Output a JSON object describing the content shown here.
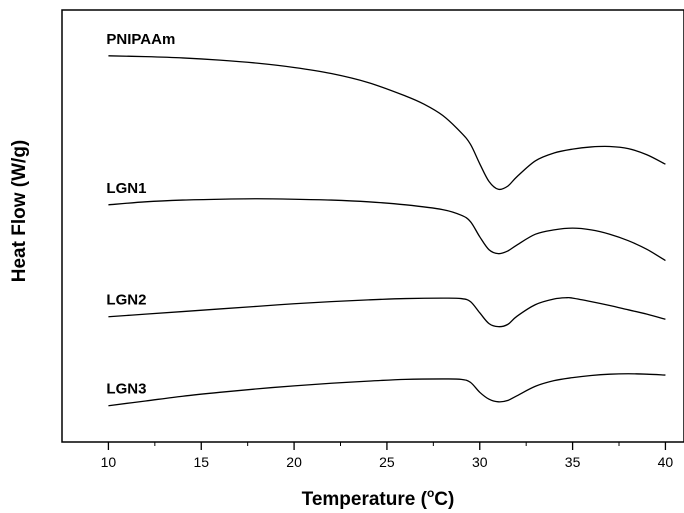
{
  "chart_data": {
    "type": "line",
    "xlabel": "Temperature",
    "xlabel_unit_prefix": "(",
    "xlabel_unit_sup": "o",
    "xlabel_unit": "C)",
    "ylabel": "Heat Flow (W/g)",
    "xlim": [
      7.5,
      41
    ],
    "ylim": [
      0,
      1
    ],
    "x_ticks": [
      10,
      15,
      20,
      25,
      30,
      35,
      40
    ],
    "y_tick_labels": false,
    "legend": "none (labels placed above each curve)",
    "grid": false,
    "series": [
      {
        "name": "PNIPAAm",
        "points": [
          [
            10,
            0.894
          ],
          [
            12,
            0.892
          ],
          [
            14,
            0.889
          ],
          [
            16,
            0.884
          ],
          [
            18,
            0.877
          ],
          [
            20,
            0.867
          ],
          [
            22,
            0.853
          ],
          [
            24,
            0.832
          ],
          [
            26,
            0.801
          ],
          [
            27,
            0.782
          ],
          [
            28,
            0.756
          ],
          [
            29,
            0.716
          ],
          [
            29.5,
            0.689
          ],
          [
            30,
            0.644
          ],
          [
            30.5,
            0.603
          ],
          [
            31,
            0.585
          ],
          [
            31.5,
            0.592
          ],
          [
            32,
            0.614
          ],
          [
            33,
            0.651
          ],
          [
            34,
            0.669
          ],
          [
            35,
            0.678
          ],
          [
            36,
            0.683
          ],
          [
            37,
            0.684
          ],
          [
            38,
            0.679
          ],
          [
            39,
            0.665
          ],
          [
            40,
            0.643
          ]
        ]
      },
      {
        "name": "LGN1",
        "points": [
          [
            10,
            0.549
          ],
          [
            12,
            0.556
          ],
          [
            14,
            0.56
          ],
          [
            16,
            0.562
          ],
          [
            18,
            0.563
          ],
          [
            20,
            0.562
          ],
          [
            22,
            0.56
          ],
          [
            24,
            0.556
          ],
          [
            26,
            0.549
          ],
          [
            28,
            0.538
          ],
          [
            29,
            0.525
          ],
          [
            29.5,
            0.51
          ],
          [
            30,
            0.475
          ],
          [
            30.5,
            0.445
          ],
          [
            31,
            0.436
          ],
          [
            31.5,
            0.442
          ],
          [
            32,
            0.456
          ],
          [
            33,
            0.481
          ],
          [
            34,
            0.491
          ],
          [
            35,
            0.495
          ],
          [
            36,
            0.491
          ],
          [
            37,
            0.481
          ],
          [
            38,
            0.466
          ],
          [
            39,
            0.446
          ],
          [
            40,
            0.42
          ]
        ]
      },
      {
        "name": "LGN2",
        "points": [
          [
            10,
            0.29
          ],
          [
            12,
            0.296
          ],
          [
            14,
            0.302
          ],
          [
            16,
            0.308
          ],
          [
            18,
            0.314
          ],
          [
            20,
            0.32
          ],
          [
            22,
            0.325
          ],
          [
            24,
            0.329
          ],
          [
            26,
            0.332
          ],
          [
            28,
            0.333
          ],
          [
            29,
            0.332
          ],
          [
            29.5,
            0.325
          ],
          [
            30,
            0.299
          ],
          [
            30.5,
            0.274
          ],
          [
            31,
            0.267
          ],
          [
            31.5,
            0.272
          ],
          [
            32,
            0.291
          ],
          [
            33,
            0.318
          ],
          [
            34,
            0.331
          ],
          [
            34.7,
            0.334
          ],
          [
            35,
            0.333
          ],
          [
            36,
            0.325
          ],
          [
            37,
            0.316
          ],
          [
            38,
            0.306
          ],
          [
            39,
            0.296
          ],
          [
            40,
            0.284
          ]
        ]
      },
      {
        "name": "LGN3",
        "points": [
          [
            10,
            0.084
          ],
          [
            12,
            0.095
          ],
          [
            14,
            0.106
          ],
          [
            16,
            0.115
          ],
          [
            18,
            0.123
          ],
          [
            20,
            0.13
          ],
          [
            22,
            0.136
          ],
          [
            24,
            0.141
          ],
          [
            26,
            0.145
          ],
          [
            28,
            0.146
          ],
          [
            29,
            0.145
          ],
          [
            29.5,
            0.138
          ],
          [
            30,
            0.115
          ],
          [
            30.5,
            0.099
          ],
          [
            31,
            0.093
          ],
          [
            31.5,
            0.096
          ],
          [
            32,
            0.107
          ],
          [
            33,
            0.129
          ],
          [
            34,
            0.142
          ],
          [
            35,
            0.149
          ],
          [
            36,
            0.154
          ],
          [
            37,
            0.157
          ],
          [
            38,
            0.158
          ],
          [
            39,
            0.157
          ],
          [
            40,
            0.155
          ]
        ]
      }
    ]
  }
}
